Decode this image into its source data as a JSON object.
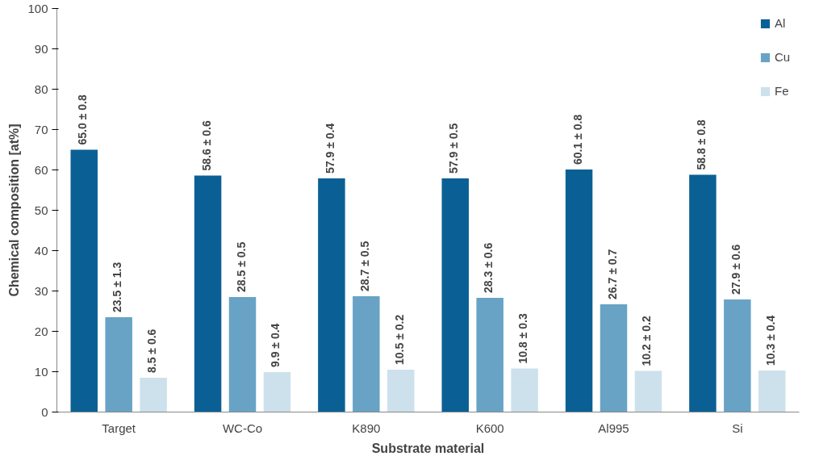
{
  "chart_data": {
    "type": "bar",
    "xlabel": "Substrate material",
    "ylabel": "Chemical composition [at%]",
    "categories": [
      "Target",
      "WC-Co",
      "K890",
      "K600",
      "Al995",
      "Si"
    ],
    "series": [
      {
        "name": "Al",
        "color": "#0a6094",
        "values": [
          65.0,
          58.6,
          57.9,
          57.9,
          60.1,
          58.8
        ],
        "value_labels": [
          "65.0 ± 0.8",
          "58.6 ± 0.6",
          "57.9 ± 0.4",
          "57.9 ± 0.5",
          "60.1 ± 0.8",
          "58.8 ± 0.8"
        ]
      },
      {
        "name": "Cu",
        "color": "#68a3c5",
        "values": [
          23.5,
          28.5,
          28.7,
          28.3,
          26.7,
          27.9
        ],
        "value_labels": [
          "23.5 ± 1.3",
          "28.5 ± 0.5",
          "28.7 ± 0.5",
          "28.3 ± 0.6",
          "26.7 ± 0.7",
          "27.9 ± 0.6"
        ]
      },
      {
        "name": "Fe",
        "color": "#cde1ec",
        "values": [
          8.5,
          9.9,
          10.5,
          10.8,
          10.2,
          10.3
        ],
        "value_labels": [
          "8.5 ± 0.6",
          "9.9 ± 0.4",
          "10.5 ± 0.2",
          "10.8 ± 0.3",
          "10.2 ± 0.2",
          "10.3 ± 0.4"
        ]
      }
    ],
    "ylim": [
      0,
      100
    ],
    "yticks": [
      0,
      10,
      20,
      30,
      40,
      50,
      60,
      70,
      80,
      90,
      100
    ],
    "grid": false,
    "legend": "top right"
  }
}
